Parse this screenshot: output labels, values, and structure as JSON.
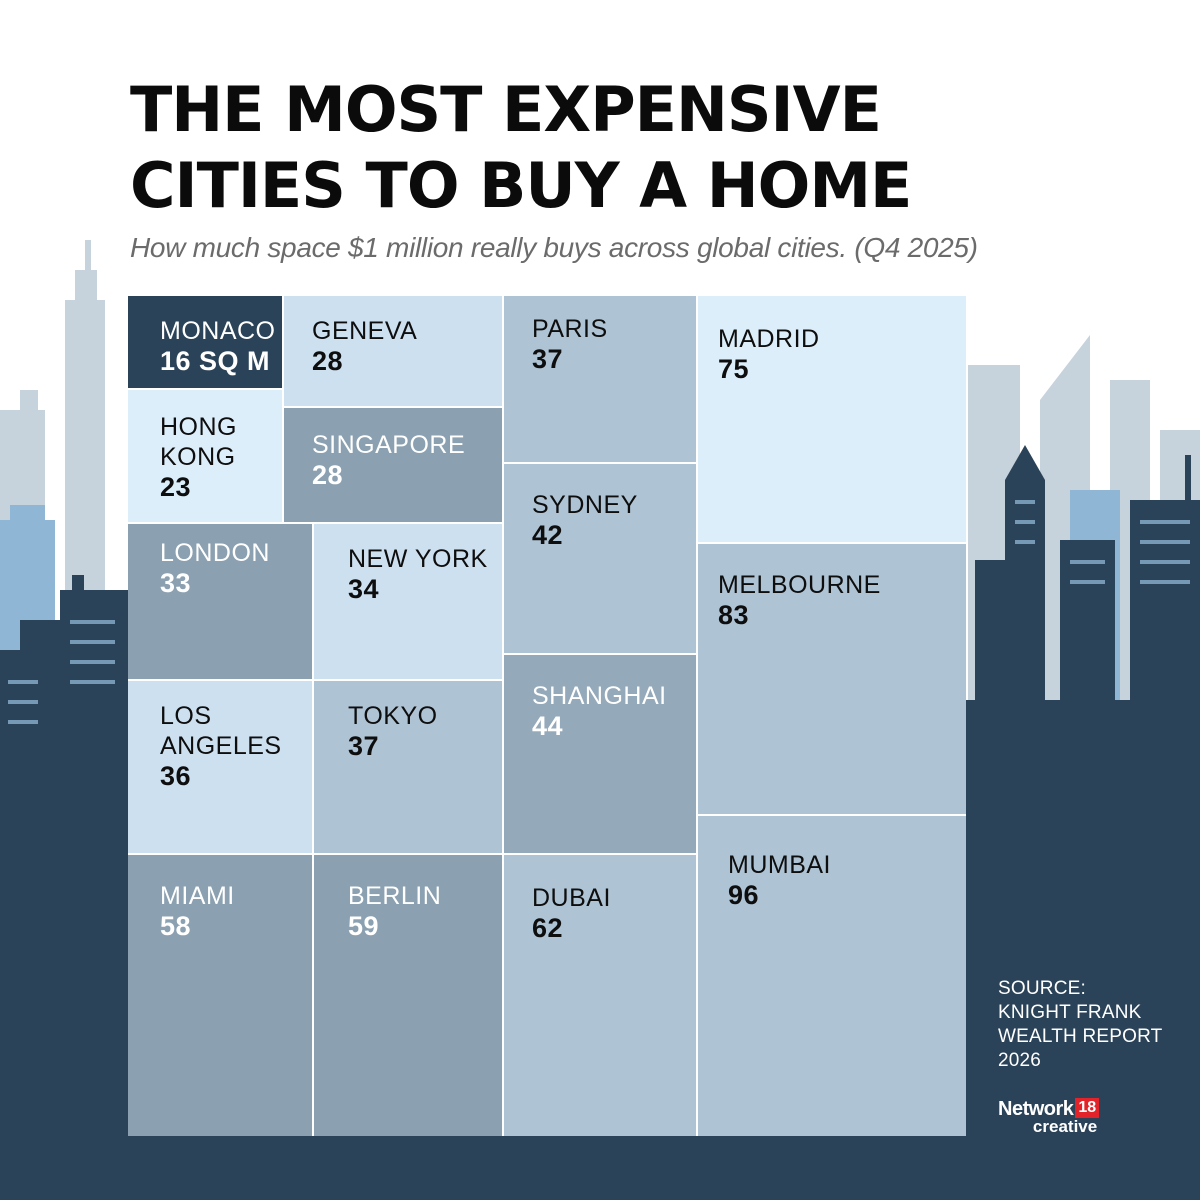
{
  "header": {
    "title": "THE MOST EXPENSIVE CITIES TO BUY A HOME",
    "subtitle": "How much space $1 million really buys across global cities. (Q4 2025)"
  },
  "chart_data": {
    "type": "treemap",
    "title": "THE MOST EXPENSIVE CITIES TO BUY A HOME",
    "subtitle": "How much space $1 million really buys across global cities. (Q4 2025)",
    "unit": "SQ M",
    "items": [
      {
        "city": "MONACO",
        "value": 16,
        "value_label": "16 SQ M"
      },
      {
        "city": "GENEVA",
        "value": 28,
        "value_label": "28"
      },
      {
        "city": "HONG KONG",
        "value": 23,
        "value_label": "23"
      },
      {
        "city": "SINGAPORE",
        "value": 28,
        "value_label": "28"
      },
      {
        "city": "LONDON",
        "value": 33,
        "value_label": "33"
      },
      {
        "city": "NEW YORK",
        "value": 34,
        "value_label": "34"
      },
      {
        "city": "LOS ANGELES",
        "value": 36,
        "value_label": "36"
      },
      {
        "city": "TOKYO",
        "value": 37,
        "value_label": "37"
      },
      {
        "city": "PARIS",
        "value": 37,
        "value_label": "37"
      },
      {
        "city": "SYDNEY",
        "value": 42,
        "value_label": "42"
      },
      {
        "city": "SHANGHAI",
        "value": 44,
        "value_label": "44"
      },
      {
        "city": "MADRID",
        "value": 75,
        "value_label": "75"
      },
      {
        "city": "MELBOURNE",
        "value": 83,
        "value_label": "83"
      },
      {
        "city": "MIAMI",
        "value": 58,
        "value_label": "58"
      },
      {
        "city": "BERLIN",
        "value": 59,
        "value_label": "59"
      },
      {
        "city": "DUBAI",
        "value": 62,
        "value_label": "62"
      },
      {
        "city": "MUMBAI",
        "value": 96,
        "value_label": "96"
      }
    ]
  },
  "source": {
    "lines": [
      "SOURCE:",
      "KNIGHT FRANK",
      "WEALTH REPORT",
      "2026"
    ]
  },
  "brand": {
    "name": "Network",
    "number": "18",
    "tagline": "creative"
  },
  "colors": {
    "dark_navy": "#2b4358",
    "steel": "#8ba0b0",
    "mid_blue": "#aec3d4",
    "light_blue": "#cde0f0",
    "pale_blue": "#ddeefb",
    "sky_light": "#c6d2dc",
    "sky_blue": "#8fb6d4"
  }
}
